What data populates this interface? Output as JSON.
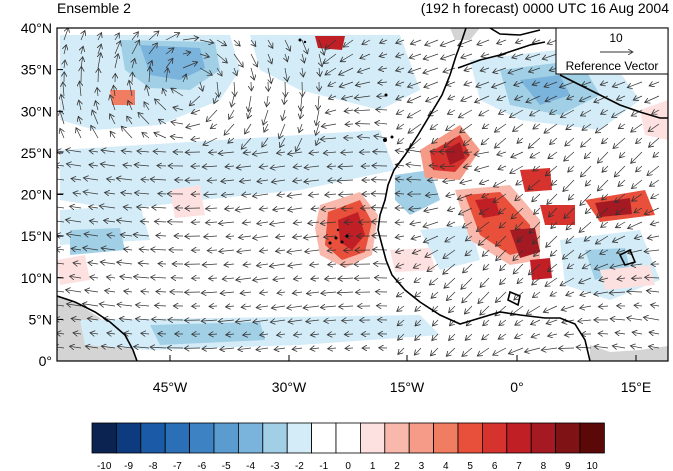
{
  "titles": {
    "left": "Ensemble 2",
    "right": "(192 h forecast) 0000 UTC 16 Aug 2004"
  },
  "reference_vector": {
    "magnitude": "10",
    "label": "Reference Vector"
  },
  "axes": {
    "y_ticks": [
      "0°",
      "5°N",
      "10°N",
      "15°N",
      "20°N",
      "25°N",
      "30°N",
      "35°N",
      "40°N"
    ],
    "x_ticks": [
      "45°W",
      "30°W",
      "15°W",
      "0°",
      "15°E"
    ]
  },
  "colorbar": {
    "labels": [
      "-10",
      "-9",
      "-8",
      "-7",
      "-6",
      "-5",
      "-4",
      "-3",
      "-2",
      "-1",
      "0",
      "1",
      "2",
      "3",
      "4",
      "5",
      "6",
      "7",
      "8",
      "9",
      "10"
    ],
    "colors": [
      "#0a2350",
      "#0e3a80",
      "#1b5aa6",
      "#2b6fb7",
      "#3d83c4",
      "#5a9bd0",
      "#7ab3dc",
      "#a1d0e6",
      "#d3ecf8",
      "#ffffff",
      "#ffffff",
      "#fde0e0",
      "#f8b8ac",
      "#f59b87",
      "#f07c62",
      "#e8503c",
      "#d6322e",
      "#c11f26",
      "#a51a22",
      "#7f1214",
      "#5a0808"
    ]
  },
  "map": {
    "lat_range": [
      0,
      40
    ],
    "lon_range": [
      -57,
      19
    ],
    "field": "wind anomaly shading with wind vectors"
  }
}
